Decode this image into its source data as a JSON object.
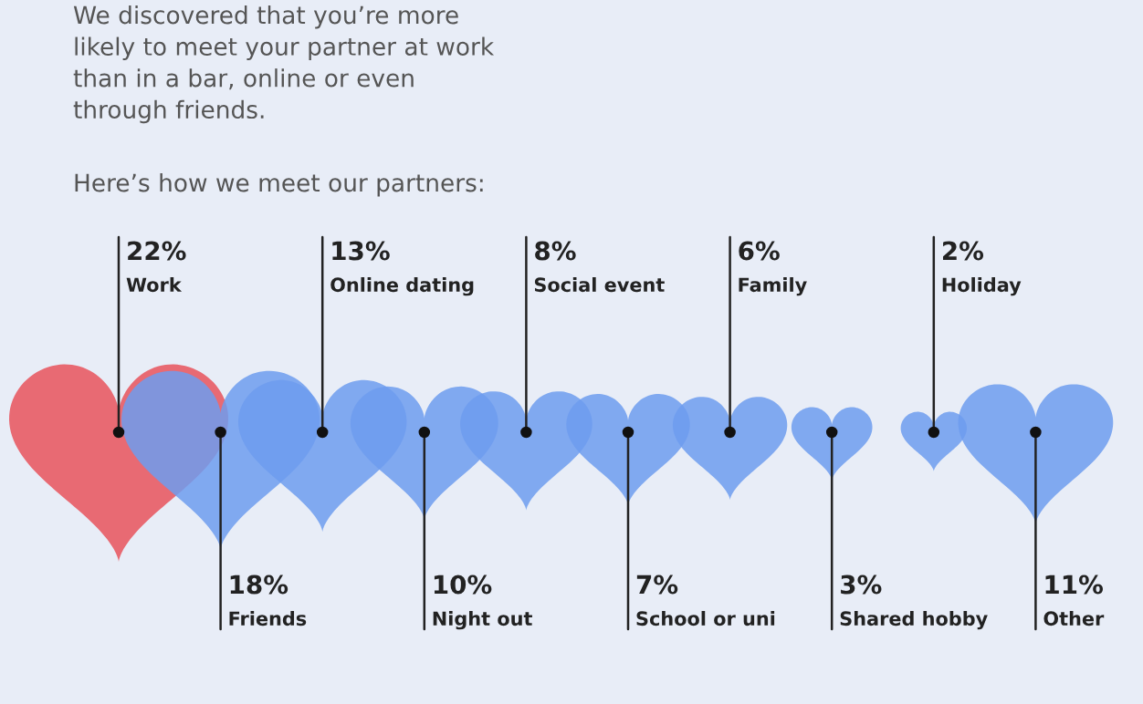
{
  "chart_data": {
    "type": "other",
    "title": "We discovered that you’re more\nlikely to meet your partner at work\nthan in a bar, online or even\nthrough friends.",
    "subtitle": "Here’s how we meet our partners:",
    "categories": [
      "Work",
      "Friends",
      "Online dating",
      "Night out",
      "Social event",
      "School or uni",
      "Family",
      "Shared hobby",
      "Holiday",
      "Other"
    ],
    "values": [
      22,
      18,
      13,
      10,
      8,
      7,
      6,
      3,
      2,
      11
    ],
    "value_labels": [
      "22%",
      "18%",
      "13%",
      "10%",
      "8%",
      "7%",
      "6%",
      "3%",
      "2%",
      "11%"
    ],
    "colors": [
      "#e8525c",
      "#6d9cee",
      "#6d9cee",
      "#6d9cee",
      "#6d9cee",
      "#6d9cee",
      "#6d9cee",
      "#6d9cee",
      "#6d9cee",
      "#6d9cee"
    ]
  }
}
